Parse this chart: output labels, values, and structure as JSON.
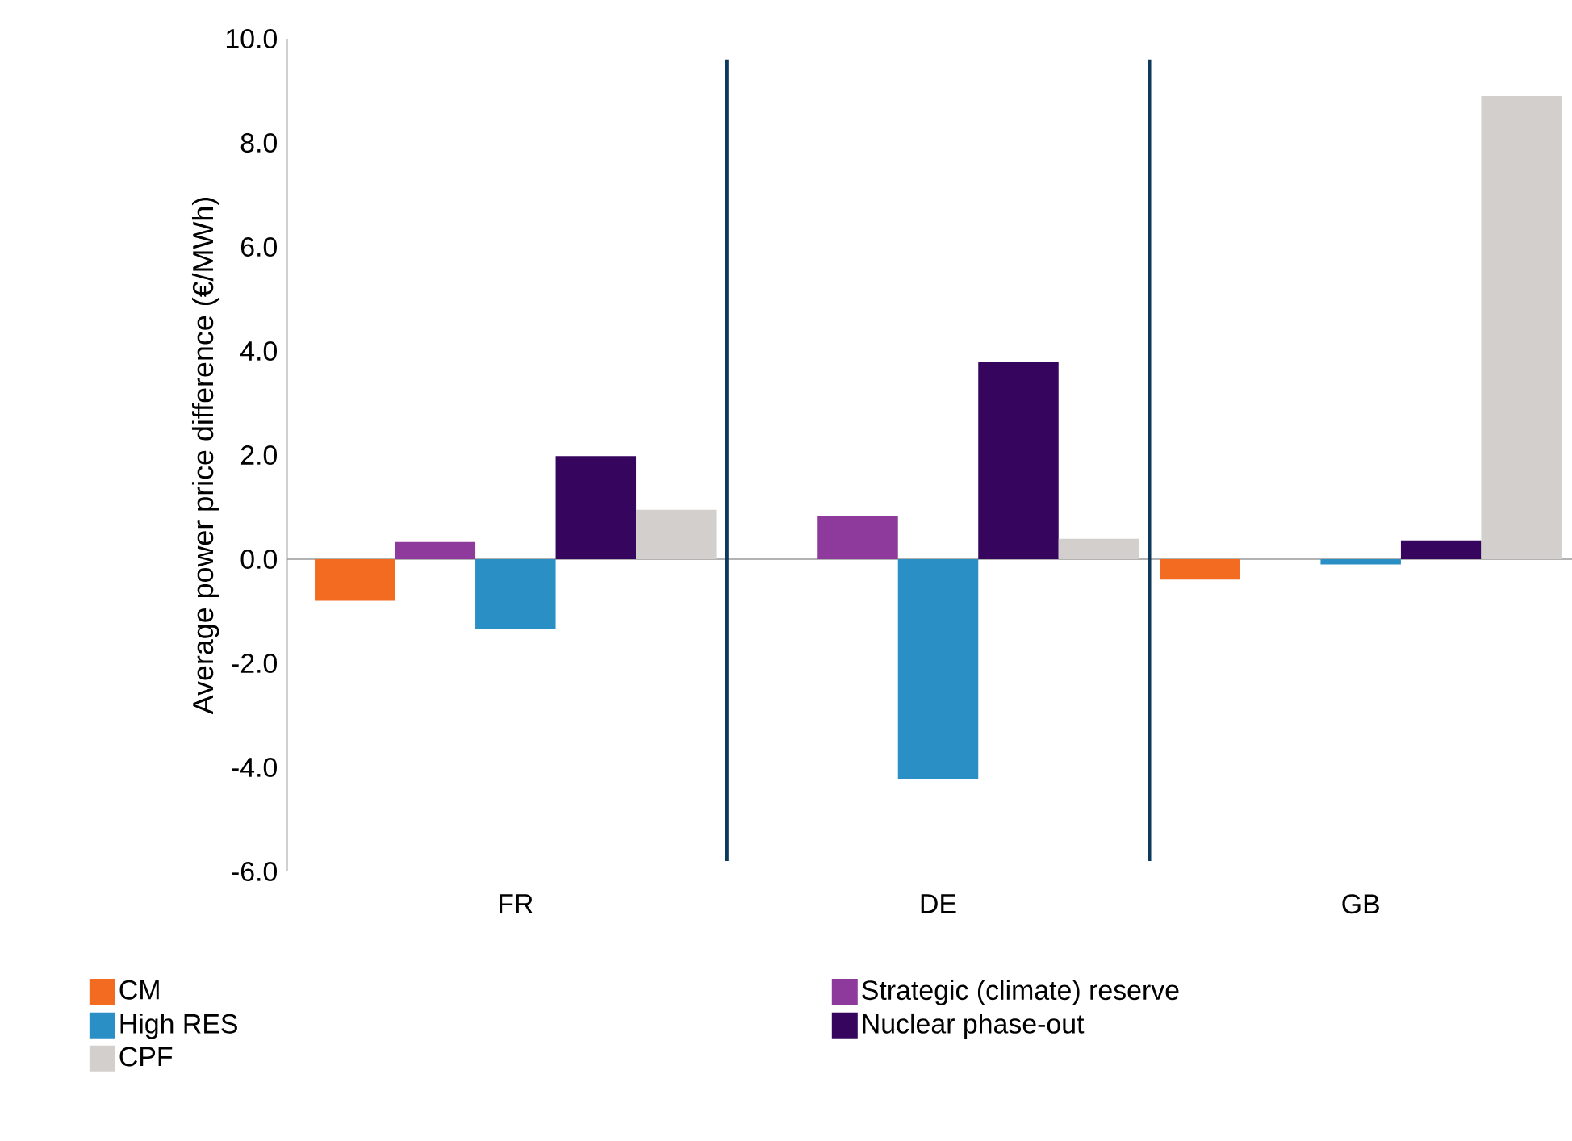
{
  "chart_data": {
    "type": "bar",
    "ylabel": "Average power price difference (€/MWh)",
    "categories": [
      "FR",
      "DE",
      "GB"
    ],
    "series": [
      {
        "name": "CM",
        "color": "#f26b21",
        "values": [
          -0.8,
          0,
          -0.39
        ]
      },
      {
        "name": "Strategic (climate) reserve",
        "color": "#8e3a9c",
        "values": [
          0.33,
          0.82,
          0
        ]
      },
      {
        "name": "High RES",
        "color": "#2a8fc4",
        "values": [
          -1.35,
          -4.23,
          -0.1
        ]
      },
      {
        "name": "Nuclear phase-out",
        "color": "#36065e",
        "values": [
          1.98,
          3.8,
          0.36
        ]
      },
      {
        "name": "CPF",
        "color": "#d3cfcc",
        "values": [
          0.95,
          0.39,
          8.9
        ]
      }
    ],
    "ylim": [
      -6,
      10
    ],
    "yticks": [
      {
        "value": -6,
        "label": "-6.0"
      },
      {
        "value": -4,
        "label": "-4.0"
      },
      {
        "value": -2,
        "label": "-2.0"
      },
      {
        "value": 0,
        "label": "0.0"
      },
      {
        "value": 2,
        "label": "2.0"
      },
      {
        "value": 4,
        "label": "4.0"
      },
      {
        "value": 6,
        "label": "6.0"
      },
      {
        "value": 8,
        "label": "8.0"
      },
      {
        "value": 10,
        "label": "10.0"
      }
    ],
    "legend": "bottom"
  }
}
